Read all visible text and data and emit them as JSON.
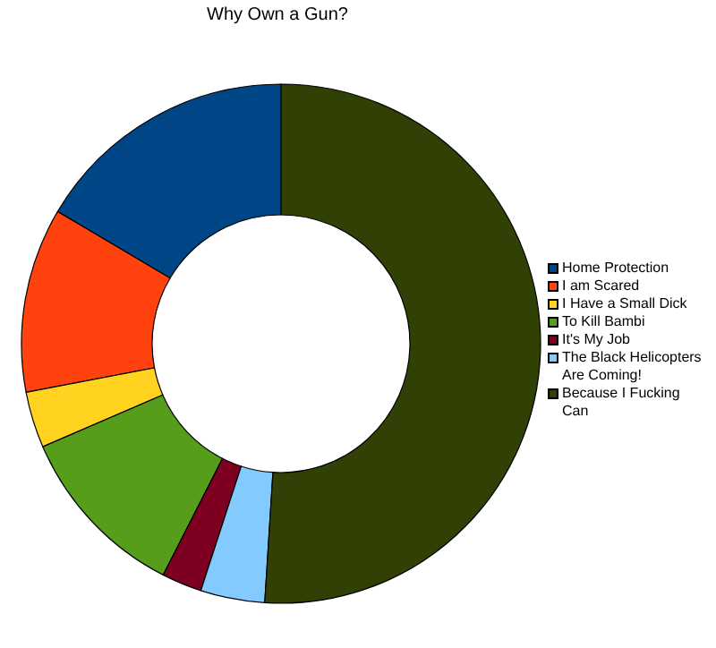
{
  "chart_data": {
    "type": "donut",
    "title": "Why Own a Gun?",
    "categories": [
      "Home Protection",
      "I am Scared",
      "I Have a Small Dick",
      "To Kill Bambi",
      "It's My Job",
      "The Black Helicopters Are Coming!",
      "Because I Fucking Can"
    ],
    "values": [
      16.5,
      11.5,
      3.5,
      11,
      2.5,
      4,
      51
    ],
    "colors": [
      "#004586",
      "#ff420e",
      "#ffd320",
      "#579d1c",
      "#7e0021",
      "#83caff",
      "#314004"
    ],
    "legend": "right"
  }
}
